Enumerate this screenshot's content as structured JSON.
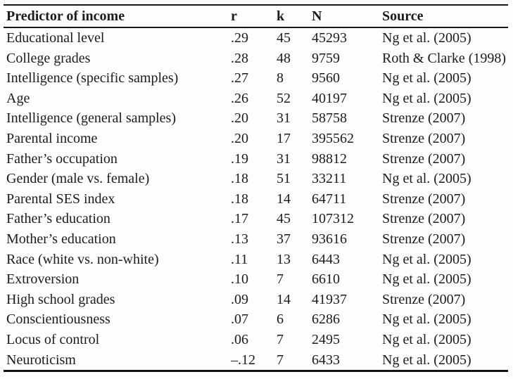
{
  "table": {
    "name": "predictors-of-income-table",
    "columns": [
      {
        "key": "predictor",
        "label": "Predictor of income"
      },
      {
        "key": "r",
        "label": "r"
      },
      {
        "key": "k",
        "label": "k"
      },
      {
        "key": "n",
        "label": "N"
      },
      {
        "key": "source",
        "label": "Source"
      }
    ],
    "rows": [
      [
        "Educational level",
        ".29",
        "45",
        "45293",
        "Ng et al. (2005)"
      ],
      [
        "College grades",
        ".28",
        "48",
        "9759",
        "Roth & Clarke (1998)"
      ],
      [
        "Intelligence (specific samples)",
        ".27",
        "8",
        "9560",
        "Ng et al. (2005)"
      ],
      [
        "Age",
        ".26",
        "52",
        "40197",
        "Ng et al. (2005)"
      ],
      [
        "Intelligence (general samples)",
        ".20",
        "31",
        "58758",
        "Strenze (2007)"
      ],
      [
        "Parental income",
        ".20",
        "17",
        "395562",
        "Strenze (2007)"
      ],
      [
        "Father’s occupation",
        ".19",
        "31",
        "98812",
        "Strenze (2007)"
      ],
      [
        "Gender (male vs. female)",
        ".18",
        "51",
        "33211",
        "Ng et al. (2005)"
      ],
      [
        "Parental SES index",
        ".18",
        "14",
        "64711",
        "Strenze (2007)"
      ],
      [
        "Father’s education",
        ".17",
        "45",
        "107312",
        "Strenze (2007)"
      ],
      [
        "Mother’s education",
        ".13",
        "37",
        "93616",
        "Strenze (2007)"
      ],
      [
        "Race (white vs. non-white)",
        ".11",
        "13",
        "6443",
        "Ng et al. (2005)"
      ],
      [
        "Extroversion",
        ".10",
        "7",
        "6610",
        "Ng et al. (2005)"
      ],
      [
        "High school grades",
        ".09",
        "14",
        "41937",
        "Strenze (2007)"
      ],
      [
        "Conscientiousness",
        ".07",
        "6",
        "6286",
        "Ng et al. (2005)"
      ],
      [
        "Locus of control",
        ".06",
        "7",
        "2495",
        "Ng et al. (2005)"
      ],
      [
        "Neuroticism",
        "–.12",
        "7",
        "6433",
        "Ng et al. (2005)"
      ]
    ],
    "colors": {
      "text": "#1c1c1c",
      "rule": "#161616",
      "background": "#fdfdfd"
    }
  }
}
